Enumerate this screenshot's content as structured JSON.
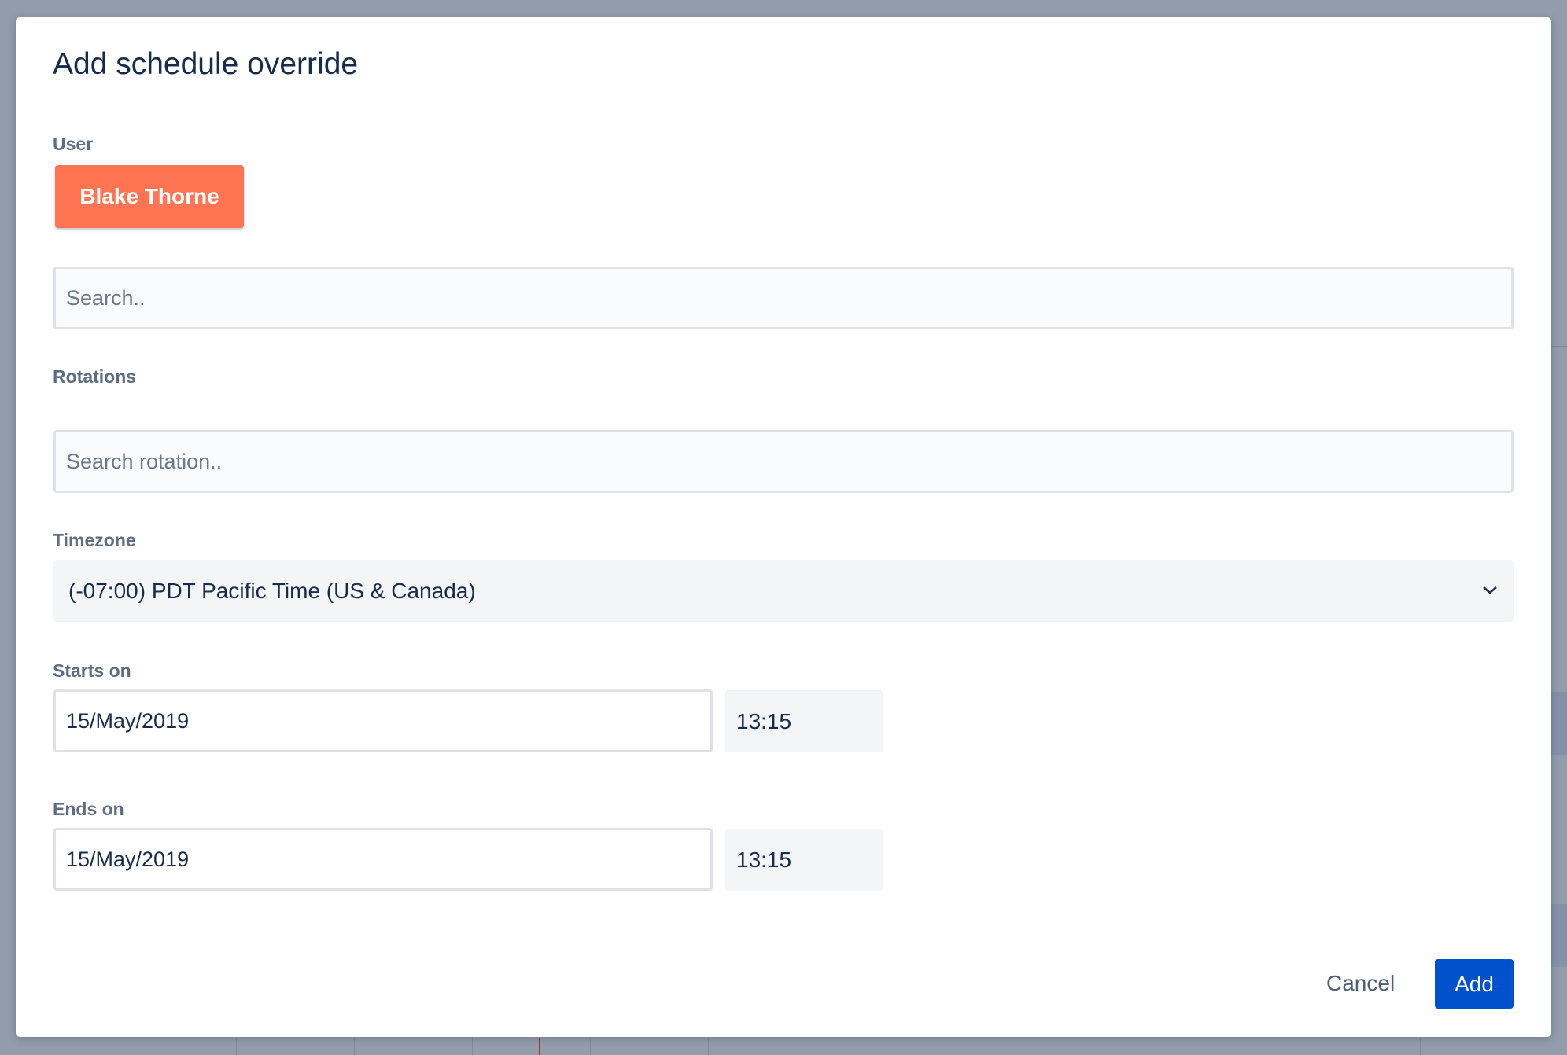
{
  "dialog": {
    "title": "Add schedule override",
    "user": {
      "label": "User",
      "selected_user": "Blake Thorne",
      "chip_color": "#ff7452",
      "search_placeholder": "Search.."
    },
    "rotations": {
      "label": "Rotations",
      "search_placeholder": "Search rotation.."
    },
    "timezone": {
      "label": "Timezone",
      "value": "(-07:00) PDT Pacific Time (US & Canada)",
      "icon": "chevron-down-icon"
    },
    "starts_on": {
      "label": "Starts on",
      "date": "15/May/2019",
      "time": "13:15"
    },
    "ends_on": {
      "label": "Ends on",
      "date": "15/May/2019",
      "time": "13:15"
    },
    "actions": {
      "cancel_label": "Cancel",
      "add_label": "Add",
      "primary_color": "#0052cc"
    }
  }
}
